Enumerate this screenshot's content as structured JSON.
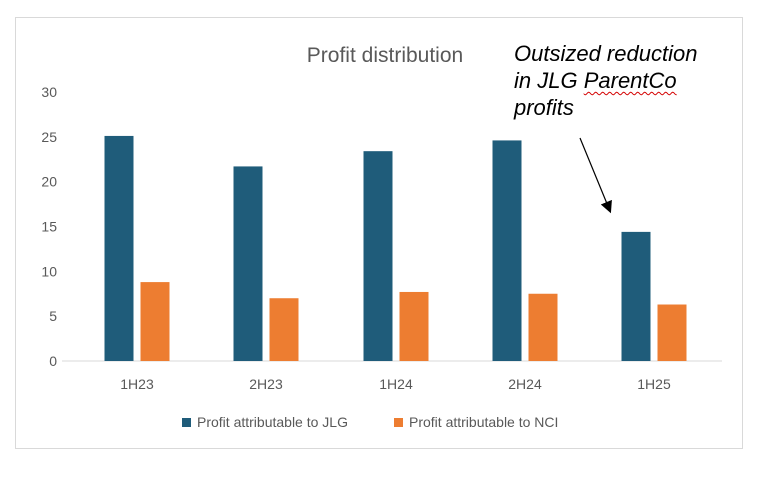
{
  "chart_data": {
    "type": "bar",
    "title": "Profit distribution",
    "categories": [
      "1H23",
      "2H23",
      "1H24",
      "2H24",
      "1H25"
    ],
    "series": [
      {
        "name": "Profit attributable to JLG",
        "color": "#1f5c7a",
        "values": [
          25.1,
          21.7,
          23.4,
          24.6,
          14.4
        ]
      },
      {
        "name": "Profit attributable to NCI",
        "color": "#ed7d31",
        "values": [
          8.8,
          7.0,
          7.7,
          7.5,
          6.3
        ]
      }
    ],
    "ylim": [
      0,
      30
    ],
    "yticks": [
      "0",
      "5",
      "10",
      "15",
      "20",
      "25",
      "30"
    ],
    "xlabel": "",
    "ylabel": "",
    "legend_position": "bottom",
    "grid": false
  },
  "annotation": {
    "line1": "Outsized reduction",
    "line2_prefix": "in JLG ",
    "line2_marked": "ParentCo",
    "line3": "profits"
  }
}
